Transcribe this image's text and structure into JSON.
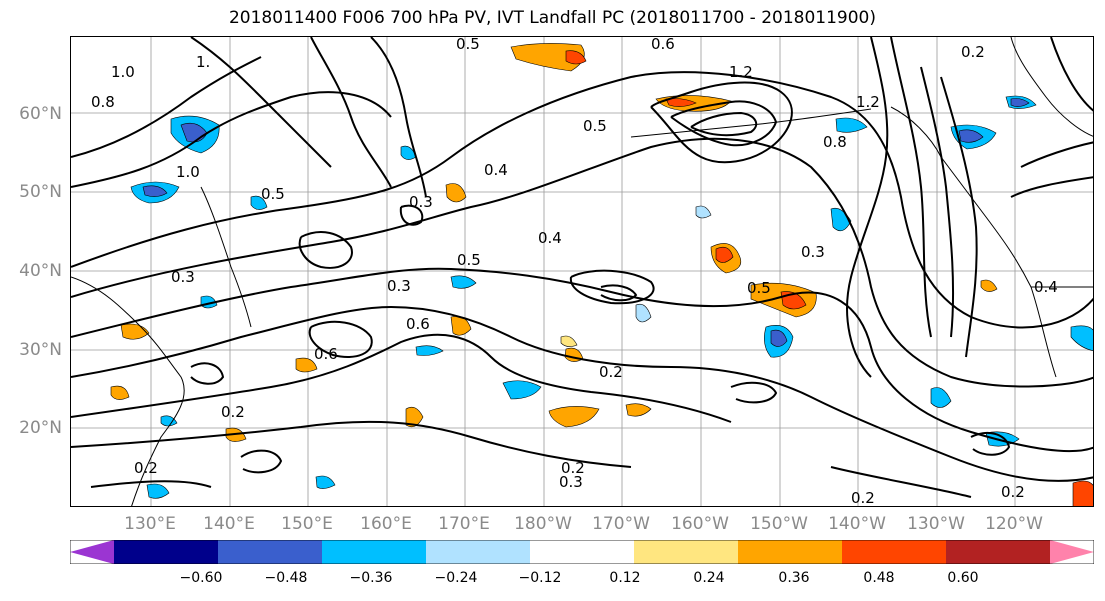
{
  "title": "2018011400 F006 700 hPa PV, IVT Landfall PC (2018011700 - 2018011900)",
  "lat_labels": [
    "60°N",
    "50°N",
    "40°N",
    "30°N",
    "20°N"
  ],
  "lon_labels": [
    "130°E",
    "140°E",
    "150°E",
    "160°E",
    "170°E",
    "180°W",
    "170°W",
    "160°W",
    "150°W",
    "140°W",
    "130°W",
    "120°W"
  ],
  "contour_labels": [
    "1.0",
    "1.",
    "0.8",
    "0.5",
    "1.2",
    "0.5",
    "0.2",
    "0.6",
    "1.2",
    "0.5",
    "1.0",
    "0.8",
    "0.3",
    "0.4",
    "0.4",
    "0.5",
    "0.3",
    "0.4",
    "0.3",
    "0.6",
    "0.5",
    "0.3",
    "0.2",
    "0.6",
    "0.2",
    "0.2",
    "0.3",
    "0.2",
    "0.2",
    "0.2"
  ],
  "colorbar": {
    "ticks": [
      "−0.60",
      "−0.48",
      "−0.36",
      "−0.24",
      "−0.12",
      "0.12",
      "0.24",
      "0.36",
      "0.48",
      "0.60"
    ],
    "colors": [
      "#9b35d2",
      "#00008b",
      "#3a5fcd",
      "#00bfff",
      "#b0e2ff",
      "#ffffff",
      "#ffe680",
      "#ffa500",
      "#ff4500",
      "#b22222",
      "#ff82ab"
    ]
  },
  "legend_colors": {
    "pos_light": "#ffe680",
    "pos_mid": "#ffa500",
    "pos_strong": "#ff4500",
    "neg_light": "#b0e2ff",
    "neg_mid": "#00bfff",
    "neg_strong": "#3a5fcd"
  }
}
